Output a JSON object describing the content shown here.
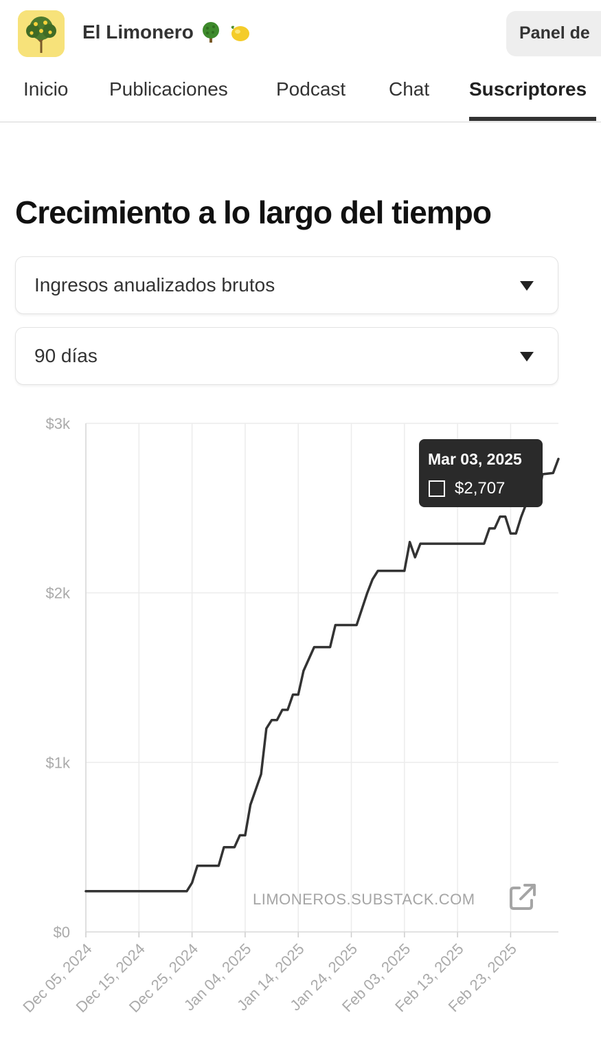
{
  "header": {
    "publication_name": "El Limonero",
    "emoji_icons": [
      "tree-icon",
      "lemon-icon"
    ],
    "dashboard_button": "Panel de"
  },
  "tabs": [
    {
      "label": "Inicio",
      "active": false
    },
    {
      "label": "Publicaciones",
      "active": false
    },
    {
      "label": "Podcast",
      "active": false
    },
    {
      "label": "Chat",
      "active": false
    },
    {
      "label": "Suscriptores",
      "active": true
    }
  ],
  "section": {
    "title": "Crecimiento a lo largo del tiempo",
    "metric_select": "Ingresos anualizados brutos",
    "range_select": "90 días"
  },
  "chart_data": {
    "type": "line",
    "title": "",
    "xlabel": "",
    "ylabel": "",
    "y_tick_labels": [
      "$0",
      "$1k",
      "$2k",
      "$3k"
    ],
    "y_ticks": [
      0,
      1000,
      2000,
      3000
    ],
    "ylim": [
      0,
      3000
    ],
    "x_tick_labels": [
      "Dec 05, 2024",
      "Dec 15, 2024",
      "Dec 25, 2024",
      "Jan 04, 2025",
      "Jan 14, 2025",
      "Jan 24, 2025",
      "Feb 03, 2025",
      "Feb 13, 2025",
      "Feb 23, 2025"
    ],
    "xlim": [
      "2024-12-05",
      "2025-03-04"
    ],
    "grid": true,
    "line_color": "#333333",
    "series": [
      {
        "points": [
          [
            "2024-12-05",
            240
          ],
          [
            "2024-12-24",
            240
          ],
          [
            "2024-12-25",
            290
          ],
          [
            "2024-12-26",
            390
          ],
          [
            "2024-12-30",
            390
          ],
          [
            "2024-12-31",
            500
          ],
          [
            "2025-01-02",
            500
          ],
          [
            "2025-01-03",
            570
          ],
          [
            "2025-01-04",
            570
          ],
          [
            "2025-01-05",
            750
          ],
          [
            "2025-01-07",
            930
          ],
          [
            "2025-01-08",
            1200
          ],
          [
            "2025-01-09",
            1250
          ],
          [
            "2025-01-10",
            1250
          ],
          [
            "2025-01-11",
            1310
          ],
          [
            "2025-01-12",
            1310
          ],
          [
            "2025-01-13",
            1400
          ],
          [
            "2025-01-14",
            1400
          ],
          [
            "2025-01-15",
            1540
          ],
          [
            "2025-01-17",
            1680
          ],
          [
            "2025-01-20",
            1680
          ],
          [
            "2025-01-21",
            1810
          ],
          [
            "2025-01-25",
            1810
          ],
          [
            "2025-01-27",
            2000
          ],
          [
            "2025-01-28",
            2080
          ],
          [
            "2025-01-29",
            2130
          ],
          [
            "2025-02-03",
            2130
          ],
          [
            "2025-02-04",
            2300
          ],
          [
            "2025-02-05",
            2210
          ],
          [
            "2025-02-06",
            2290
          ],
          [
            "2025-02-18",
            2290
          ],
          [
            "2025-02-19",
            2380
          ],
          [
            "2025-02-20",
            2380
          ],
          [
            "2025-02-21",
            2450
          ],
          [
            "2025-02-22",
            2450
          ],
          [
            "2025-02-23",
            2350
          ],
          [
            "2025-02-24",
            2350
          ],
          [
            "2025-02-25",
            2450
          ],
          [
            "2025-02-26",
            2530
          ],
          [
            "2025-02-28",
            2530
          ],
          [
            "2025-03-01",
            2700
          ],
          [
            "2025-03-03",
            2707
          ],
          [
            "2025-03-04",
            2790
          ]
        ]
      }
    ],
    "tooltip": {
      "date": "Mar 03, 2025",
      "value_label": "$2,707",
      "value": 2707
    }
  },
  "watermark": {
    "text": "LIMONEROS.SUBSTACK.COM",
    "icon": "external-link-icon"
  }
}
